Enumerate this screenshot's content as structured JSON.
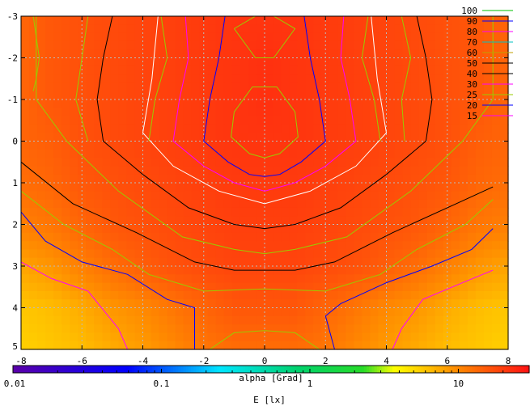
{
  "chart_data": {
    "type": "heatmap",
    "title": "",
    "xlabel": "alpha [Grad]",
    "colorbar_label": "E [lx]",
    "xlim": [
      -8,
      8
    ],
    "ylim": [
      -3,
      5
    ],
    "y_reversed": true,
    "grid": true,
    "legend_position": "top-right",
    "x_ticks": [
      "-8",
      "-6",
      "-4",
      "-2",
      "0",
      "2",
      "4",
      "6",
      "8"
    ],
    "y_ticks": [
      "-3",
      "-2",
      "-1",
      "0",
      "1",
      "2",
      "3",
      "4",
      "5"
    ],
    "colorbar": {
      "scale": "log",
      "range": [
        0.01,
        30
      ],
      "tick_labels": [
        "0.01",
        "0.1",
        "1",
        "10"
      ]
    },
    "contour_levels": [
      {
        "level": "100",
        "color": "#00c000"
      },
      {
        "level": "90",
        "color": "#0000ff"
      },
      {
        "level": "80",
        "color": "#ff00ff"
      },
      {
        "level": "70",
        "color": "#00c0c0"
      },
      {
        "level": "60",
        "color": "#c0a000"
      },
      {
        "level": "50",
        "color": "#000000"
      },
      {
        "level": "40",
        "color": "#000000"
      },
      {
        "level": "30",
        "color": "#ff00ff"
      },
      {
        "level": "25",
        "color": "#99cc00"
      },
      {
        "level": "20",
        "color": "#0000ff"
      },
      {
        "level": "15",
        "color": "#ff00ff"
      }
    ],
    "contour_lines": [
      {
        "level": "25",
        "color": "#99cc00",
        "points": [
          [
            -1,
            -2.7
          ],
          [
            -0.3,
            -3
          ],
          [
            0.3,
            -3
          ],
          [
            1,
            -2.7
          ],
          [
            0.3,
            -2
          ],
          [
            -0.3,
            -2
          ],
          [
            -1,
            -2.7
          ]
        ]
      },
      {
        "level": "25",
        "color": "#99cc00",
        "points": [
          [
            -1,
            -0.7
          ],
          [
            -0.4,
            -1.3
          ],
          [
            0.4,
            -1.3
          ],
          [
            1,
            -0.7
          ],
          [
            1.1,
            -0.1
          ],
          [
            0.5,
            0.3
          ],
          [
            0,
            0.4
          ],
          [
            -0.5,
            0.3
          ],
          [
            -1.1,
            -0.1
          ],
          [
            -1,
            -0.7
          ]
        ]
      },
      {
        "level": "20",
        "color": "#0000ff",
        "points": [
          [
            -1.3,
            -3
          ],
          [
            -1.5,
            -2
          ],
          [
            -1.8,
            -1
          ],
          [
            -2,
            0
          ],
          [
            -1.2,
            0.5
          ],
          [
            -0.5,
            0.8
          ],
          [
            0,
            0.85
          ],
          [
            0.5,
            0.8
          ],
          [
            1.2,
            0.5
          ],
          [
            2,
            0
          ],
          [
            1.8,
            -1
          ],
          [
            1.5,
            -2
          ],
          [
            1.3,
            -3
          ]
        ]
      },
      {
        "level": "15",
        "color": "#ff00ff",
        "points": [
          [
            -2.6,
            -3
          ],
          [
            -2.5,
            -2
          ],
          [
            -2.8,
            -1
          ],
          [
            -3,
            0
          ],
          [
            -2,
            0.6
          ],
          [
            -1,
            1
          ],
          [
            0,
            1.2
          ],
          [
            1,
            1
          ],
          [
            2,
            0.6
          ],
          [
            3,
            0
          ],
          [
            2.8,
            -1
          ],
          [
            2.5,
            -2
          ],
          [
            2.6,
            -3
          ]
        ]
      },
      {
        "level": "50",
        "color": "#ffffff",
        "points": [
          [
            -3.5,
            -3
          ],
          [
            -3.7,
            -1.5
          ],
          [
            -4,
            -0.2
          ],
          [
            -3,
            0.6
          ],
          [
            -1.5,
            1.2
          ],
          [
            0,
            1.5
          ],
          [
            1.5,
            1.2
          ],
          [
            3,
            0.6
          ],
          [
            4,
            -0.2
          ],
          [
            3.7,
            -1.5
          ],
          [
            3.5,
            -3
          ]
        ]
      },
      {
        "level": "40",
        "color": "#000000",
        "points": [
          [
            -5,
            -3
          ],
          [
            -5.3,
            -2
          ],
          [
            -5.5,
            -1
          ],
          [
            -5.3,
            0
          ],
          [
            -4,
            0.8
          ],
          [
            -2.5,
            1.6
          ],
          [
            -1,
            2
          ],
          [
            0,
            2.1
          ],
          [
            1,
            2
          ],
          [
            2.5,
            1.6
          ],
          [
            4,
            0.8
          ],
          [
            5.3,
            0
          ],
          [
            5.5,
            -1
          ],
          [
            5.3,
            -2
          ],
          [
            5,
            -3
          ]
        ]
      },
      {
        "level": "30",
        "color": "#99cc00",
        "points": [
          [
            -7.5,
            -3
          ],
          [
            -7.5,
            -2
          ],
          [
            -7.5,
            -1
          ],
          [
            -6.5,
            0
          ],
          [
            -4.8,
            1.2
          ],
          [
            -2.7,
            2.3
          ],
          [
            -1,
            2.6
          ],
          [
            0,
            2.7
          ],
          [
            1,
            2.6
          ],
          [
            2.7,
            2.3
          ],
          [
            4.8,
            1.2
          ],
          [
            6.5,
            0
          ],
          [
            7.5,
            -1
          ],
          [
            7.5,
            -2
          ],
          [
            7.5,
            -3
          ]
        ]
      },
      {
        "level": "28",
        "color": "#000000",
        "points": [
          [
            -8,
            0.5
          ],
          [
            -6.3,
            1.5
          ],
          [
            -4.2,
            2.2
          ],
          [
            -2.3,
            2.9
          ],
          [
            -1,
            3.1
          ],
          [
            0,
            3.1
          ],
          [
            1,
            3.1
          ],
          [
            2.3,
            2.9
          ],
          [
            4.2,
            2.2
          ],
          [
            6.3,
            1.5
          ],
          [
            7.5,
            1.1
          ]
        ]
      },
      {
        "level": "25",
        "color": "#99cc00",
        "points": [
          [
            -8,
            1.2
          ],
          [
            -6.6,
            2
          ],
          [
            -5,
            2.6
          ],
          [
            -3.8,
            3.2
          ],
          [
            -2,
            3.6
          ],
          [
            0,
            3.55
          ],
          [
            2,
            3.6
          ],
          [
            3.8,
            3.2
          ],
          [
            5,
            2.6
          ],
          [
            6.6,
            2
          ],
          [
            7.5,
            1.4
          ]
        ]
      },
      {
        "level": "20",
        "color": "#0000ff",
        "points": [
          [
            -8,
            1.7
          ],
          [
            -7.2,
            2.4
          ],
          [
            -6,
            2.9
          ],
          [
            -4.5,
            3.2
          ],
          [
            -3.2,
            3.8
          ],
          [
            -2.3,
            4
          ],
          [
            -2.3,
            5
          ]
        ]
      },
      {
        "level": "20",
        "color": "#0000ff",
        "points": [
          [
            7.5,
            2.1
          ],
          [
            6.8,
            2.6
          ],
          [
            5.5,
            3
          ],
          [
            4,
            3.4
          ],
          [
            2.5,
            3.9
          ],
          [
            2,
            4.2
          ],
          [
            2.3,
            5
          ]
        ]
      },
      {
        "level": "15",
        "color": "#ff00ff",
        "points": [
          [
            -8,
            2.9
          ],
          [
            -7,
            3.3
          ],
          [
            -5.8,
            3.6
          ],
          [
            -4.8,
            4.5
          ],
          [
            -4.5,
            5
          ]
        ]
      },
      {
        "level": "15",
        "color": "#ff00ff",
        "points": [
          [
            7.5,
            3.1
          ],
          [
            6.5,
            3.4
          ],
          [
            5.2,
            3.8
          ],
          [
            4.5,
            4.5
          ],
          [
            4.2,
            5
          ]
        ]
      },
      {
        "level": "25",
        "color": "#99cc00",
        "points": [
          [
            -1.8,
            5
          ],
          [
            -1,
            4.6
          ],
          [
            0,
            4.55
          ],
          [
            1,
            4.6
          ],
          [
            1.8,
            5
          ]
        ]
      },
      {
        "level": "100",
        "color": "#99cc00",
        "points": [
          [
            -7.6,
            -3
          ],
          [
            -7.5,
            -2.5
          ],
          [
            -7.4,
            -2
          ],
          [
            -7.5,
            -1.5
          ],
          [
            -7.6,
            -1.2
          ]
        ]
      },
      {
        "level": "25",
        "color": "#99cc00",
        "points": [
          [
            -3.4,
            -3
          ],
          [
            -3.2,
            -2
          ],
          [
            -3.6,
            -1
          ],
          [
            -3.8,
            0
          ]
        ]
      },
      {
        "level": "25",
        "color": "#99cc00",
        "points": [
          [
            3.4,
            -3
          ],
          [
            3.2,
            -2
          ],
          [
            3.6,
            -1
          ],
          [
            3.8,
            0
          ]
        ]
      },
      {
        "level": "15",
        "color": "#99cc00",
        "points": [
          [
            4.5,
            -3
          ],
          [
            4.8,
            -2
          ],
          [
            4.5,
            -1
          ],
          [
            4.6,
            0
          ]
        ]
      },
      {
        "level": "15",
        "color": "#99cc00",
        "points": [
          [
            -5.8,
            -3
          ],
          [
            -6.0,
            -2
          ],
          [
            -6.2,
            -1
          ],
          [
            -5.8,
            0
          ]
        ]
      }
    ],
    "field_rows": [
      {
        "y": -3,
        "values": [
          14,
          16,
          17,
          18,
          19,
          20,
          21,
          22,
          22,
          22,
          21,
          20,
          19,
          18,
          17,
          16,
          14
        ]
      },
      {
        "y": -2,
        "values": [
          14,
          16,
          17,
          18,
          19,
          20,
          21,
          22,
          23,
          22,
          21,
          20,
          19,
          18,
          17,
          16,
          14
        ]
      },
      {
        "y": -1,
        "values": [
          14,
          16,
          17,
          18,
          19,
          20,
          21,
          22,
          23,
          22,
          21,
          20,
          19,
          18,
          17,
          16,
          14
        ]
      },
      {
        "y": 0,
        "values": [
          14,
          15,
          17,
          18,
          19,
          20,
          21,
          22,
          22,
          22,
          21,
          20,
          19,
          18,
          17,
          15,
          14
        ]
      },
      {
        "y": 1,
        "values": [
          13,
          14,
          16,
          17,
          18,
          19,
          20,
          21,
          21,
          21,
          20,
          19,
          18,
          17,
          16,
          14,
          13
        ]
      },
      {
        "y": 2,
        "values": [
          11,
          12,
          14,
          16,
          17,
          18,
          19,
          20,
          20,
          20,
          19,
          18,
          17,
          16,
          14,
          12,
          11
        ]
      },
      {
        "y": 3,
        "values": [
          8,
          9,
          11,
          13,
          15,
          17,
          18,
          19,
          19,
          19,
          18,
          17,
          15,
          13,
          11,
          9,
          8
        ]
      },
      {
        "y": 4,
        "values": [
          6,
          6.5,
          7.5,
          9,
          10,
          12,
          14,
          16,
          16,
          16,
          14,
          12,
          10,
          9,
          7.5,
          6.5,
          6
        ]
      },
      {
        "y": 5,
        "values": [
          5.5,
          6,
          6.5,
          7.5,
          8.5,
          10,
          12,
          13,
          13,
          13,
          12,
          10,
          8.5,
          7.5,
          6.5,
          6,
          5.5
        ]
      }
    ]
  }
}
